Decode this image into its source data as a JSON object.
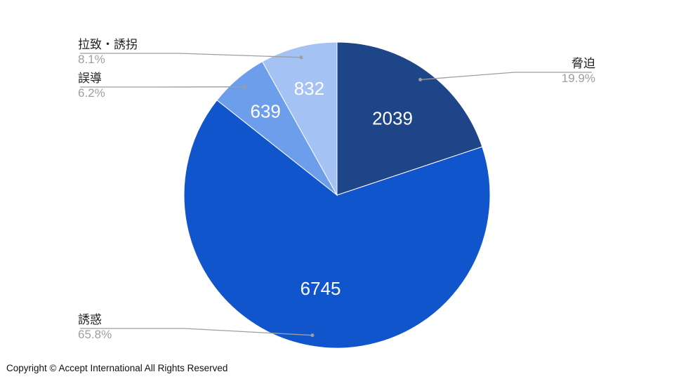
{
  "chart_data": {
    "type": "pie",
    "start": "12 o'clock",
    "direction": "clockwise",
    "slices": [
      {
        "label": "脅迫",
        "value": 2039,
        "percent": "19.9%",
        "color": "#1d4587",
        "label_side": "right"
      },
      {
        "label": "誘惑",
        "value": 6745,
        "percent": "65.8%",
        "color": "#1155cc",
        "label_side": "left"
      },
      {
        "label": "誤導",
        "value": 639,
        "percent": "6.2%",
        "color": "#6d9eeb",
        "label_side": "left"
      },
      {
        "label": "拉致・誘拐",
        "value": 832,
        "percent": "8.1%",
        "color": "#a4c2f4",
        "label_side": "left"
      }
    ],
    "data_label_color": "#ffffff",
    "legend_label_color": "#222222",
    "percent_label_color": "#9e9e9e",
    "leader_line_color": "#9e9e9e"
  },
  "footer": {
    "copyright": "Copyright © Accept International All Rights Reserved"
  }
}
